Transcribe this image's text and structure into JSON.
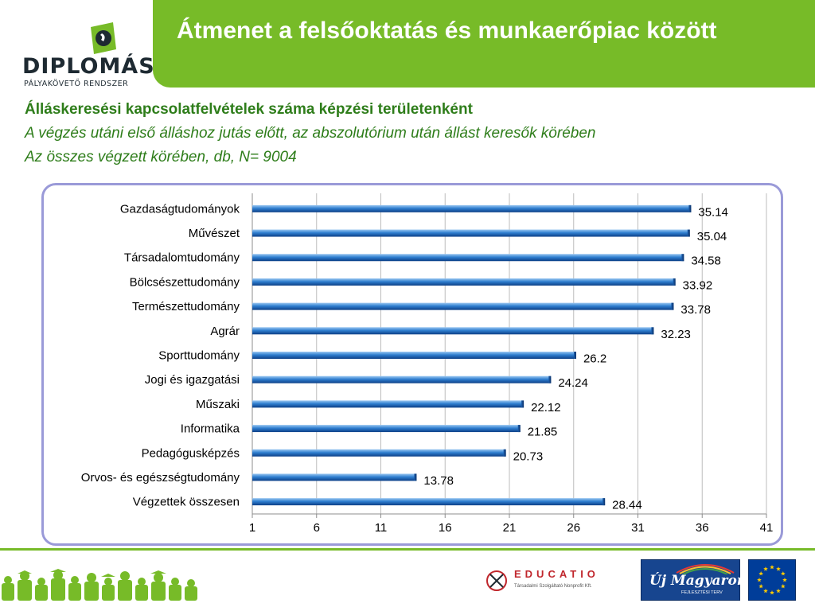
{
  "header": {
    "title": "Átmenet a felsőoktatás és munkaerőpiac között",
    "brand_color": "#77bb28"
  },
  "logo": {
    "name": "DIPLOMÁS",
    "tagline": "PÁLYAKÖVETŐ RENDSZER"
  },
  "subtitles": {
    "line1": "Álláskeresési kapcsolatfelvételek száma  képzési területenként",
    "line2": "A végzés utáni első álláshoz jutás előtt, az abszolutórium után állást keresők körében",
    "line3": "Az összes végzett körében, db, N= 9004"
  },
  "chart_data": {
    "type": "bar",
    "orientation": "horizontal",
    "categories": [
      "Gazdaságtudományok",
      "Művészet",
      "Társadalomtudomány",
      "Bölcsészettudomány",
      "Természettudomány",
      "Agrár",
      "Sporttudomány",
      "Jogi és igazgatási",
      "Műszaki",
      "Informatika",
      "Pedagógusképzés",
      "Orvos- és egészségtudomány",
      "Végzettek összesen"
    ],
    "values": [
      35.14,
      35.04,
      34.58,
      33.92,
      33.78,
      32.23,
      26.2,
      24.24,
      22.12,
      21.85,
      20.73,
      13.78,
      28.44
    ],
    "value_labels": [
      "35.14",
      "35.04",
      "34.58",
      "33.92",
      "33.78",
      "32.23",
      "26.2",
      "24.24",
      "22.12",
      "21.85",
      "20.73",
      "13.78",
      "28.44"
    ],
    "xlim": [
      1,
      41
    ],
    "xticks": [
      1,
      6,
      11,
      16,
      21,
      26,
      31,
      36,
      41
    ],
    "grid": true,
    "legend": "none",
    "bar_color": "#2f7fd0"
  },
  "footer": {
    "educatio": {
      "name": "EDUCATIO",
      "subtitle": "Társadalmi Szolgáltató Nonprofit Kft."
    },
    "umft": {
      "line1": "Új Magyarország",
      "line2": "FEJLESZTÉSI TERV"
    }
  }
}
